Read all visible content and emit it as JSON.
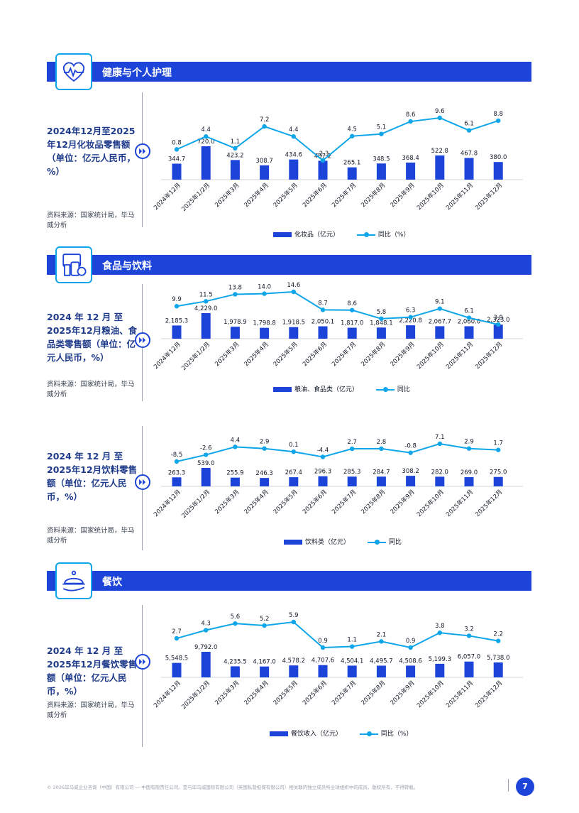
{
  "colors": {
    "bar": "#1d44d8",
    "line": "#0ea5e9",
    "title_bar": "#1d44d8",
    "text": "#1e3a8a"
  },
  "categories": [
    "2024年12月",
    "2025年1/2月",
    "2025年3月",
    "2025年4月",
    "2025年5月",
    "2025年6月",
    "2025年7月",
    "2025年8月",
    "2025年9月",
    "2025年10月",
    "2025年11月",
    "2025年12月"
  ],
  "sections": [
    {
      "title": "健康与个人护理",
      "icon": "heart-pulse-icon"
    },
    {
      "title": "食品与饮料",
      "icon": "grocery-icon"
    },
    {
      "title": "餐饮",
      "icon": "cloche-icon"
    }
  ],
  "charts": [
    {
      "desc": "2024年12月至2025年12月化妆品零售额（单位：亿元人民币，%）",
      "source": "资料来源：国家统计局，毕马威分析",
      "legend_bar": "化妆品（亿元）",
      "legend_line": "同比（%）"
    },
    {
      "desc": "2024 年 12 月 至 2025年12月粮油、食品类零售额（单位：亿元人民币，%）",
      "source": "资料来源：国家统计局，毕马威分析",
      "legend_bar": "粮油、食品类（亿元）",
      "legend_line": "同比"
    },
    {
      "desc": "2024 年 12 月 至 2025年12月饮料零售额（单位：亿元人民币，%）",
      "source": "资料来源：国家统计局，毕马威分析",
      "legend_bar": "饮料类（亿元）",
      "legend_line": "同比"
    },
    {
      "desc": "2024 年 12 月 至 2025年12月餐饮零售额（单位：亿元人民币，%）",
      "source": "资料来源：国家统计局，毕马威分析",
      "legend_bar": "餐饮收入（亿元）",
      "legend_line": "同比（%）"
    }
  ],
  "chart_data": [
    {
      "type": "bar+line",
      "title": "化妆品零售额",
      "series": [
        {
          "name": "化妆品（亿元）",
          "kind": "bar",
          "values": [
            344.7,
            720.0,
            423.2,
            308.7,
            434.6,
            407.2,
            265.1,
            348.5,
            368.4,
            522.8,
            467.8,
            380.0
          ],
          "labels": [
            "344.7",
            "720.0",
            "423.2",
            "308.7",
            "434.6",
            "407.2",
            "265.1",
            "348.5",
            "368.4",
            "522.8",
            "467.8",
            "380.0"
          ]
        },
        {
          "name": "同比（%）",
          "kind": "line",
          "values": [
            0.8,
            4.4,
            1.1,
            7.2,
            4.4,
            -2.3,
            4.5,
            5.1,
            8.6,
            9.6,
            6.1,
            8.8
          ],
          "labels": [
            "0.8",
            "4.4",
            "1.1",
            "7.2",
            "4.4",
            "-2.3",
            "4.5",
            "5.1",
            "8.6",
            "9.6",
            "6.1",
            "8.8"
          ]
        }
      ]
    },
    {
      "type": "bar+line",
      "title": "粮油、食品类零售额",
      "series": [
        {
          "name": "粮油、食品类（亿元）",
          "kind": "bar",
          "values": [
            2185.3,
            4229.0,
            1978.9,
            1798.8,
            1918.5,
            2050.1,
            1817.0,
            1848.1,
            2220.8,
            2067.7,
            2060.0,
            2323.0
          ],
          "labels": [
            "2,185.3",
            "4,229.0",
            "1,978.9",
            "1,798.8",
            "1,918.5",
            "2,050.1",
            "1,817.0",
            "1,848.1",
            "2,220.8",
            "2,067.7",
            "2,060.0",
            "2,323.0"
          ]
        },
        {
          "name": "同比",
          "kind": "line",
          "values": [
            9.9,
            11.5,
            13.8,
            14.0,
            14.6,
            8.7,
            8.6,
            5.8,
            6.3,
            9.1,
            6.1,
            3.9
          ],
          "labels": [
            "9.9",
            "11.5",
            "13.8",
            "14.0",
            "14.6",
            "8.7",
            "8.6",
            "5.8",
            "6.3",
            "9.1",
            "6.1",
            "3.9"
          ]
        }
      ]
    },
    {
      "type": "bar+line",
      "title": "饮料零售额",
      "series": [
        {
          "name": "饮料类（亿元）",
          "kind": "bar",
          "values": [
            263.3,
            539.0,
            255.9,
            246.3,
            267.4,
            296.3,
            285.3,
            284.7,
            308.2,
            282.0,
            269.0,
            275.0
          ],
          "labels": [
            "263.3",
            "539.0",
            "255.9",
            "246.3",
            "267.4",
            "296.3",
            "285.3",
            "284.7",
            "308.2",
            "282.0",
            "269.0",
            "275.0"
          ]
        },
        {
          "name": "同比",
          "kind": "line",
          "values": [
            -8.5,
            -2.6,
            4.4,
            2.9,
            0.1,
            -4.4,
            2.7,
            2.8,
            -0.8,
            7.1,
            2.9,
            1.7
          ],
          "labels": [
            "-8.5",
            "-2.6",
            "4.4",
            "2.9",
            "0.1",
            "-4.4",
            "2.7",
            "2.8",
            "-0.8",
            "7.1",
            "2.9",
            "1.7"
          ]
        }
      ]
    },
    {
      "type": "bar+line",
      "title": "餐饮零售额",
      "series": [
        {
          "name": "餐饮收入（亿元）",
          "kind": "bar",
          "values": [
            5548.5,
            9792.0,
            4235.5,
            4167.0,
            4578.2,
            4707.6,
            4504.1,
            4495.7,
            4508.6,
            5199.3,
            6057.0,
            5738.0
          ],
          "labels": [
            "5,548.5",
            "9,792.0",
            "4,235.5",
            "4,167.0",
            "4,578.2",
            "4,707.6",
            "4,504.1",
            "4,495.7",
            "4,508.6",
            "5,199.3",
            "6,057.0",
            "5,738.0"
          ]
        },
        {
          "name": "同比（%）",
          "kind": "line",
          "values": [
            2.7,
            4.3,
            5.6,
            5.2,
            5.9,
            0.9,
            1.1,
            2.1,
            0.9,
            3.8,
            3.2,
            2.2
          ],
          "labels": [
            "2.7",
            "4.3",
            "5.6",
            "5.2",
            "5.9",
            "0.9",
            "1.1",
            "2.1",
            "0.9",
            "3.8",
            "3.2",
            "2.2"
          ]
        }
      ]
    }
  ],
  "footer": {
    "copyright": "© 2026毕马威企业咨询（中国）有限公司 — 中国有限责任公司。是与毕马威国际有限公司（英国私营担保有限公司）相关联的独立成员所全球组织中的成员。版权所有，不得转载。",
    "page_number": "7"
  }
}
